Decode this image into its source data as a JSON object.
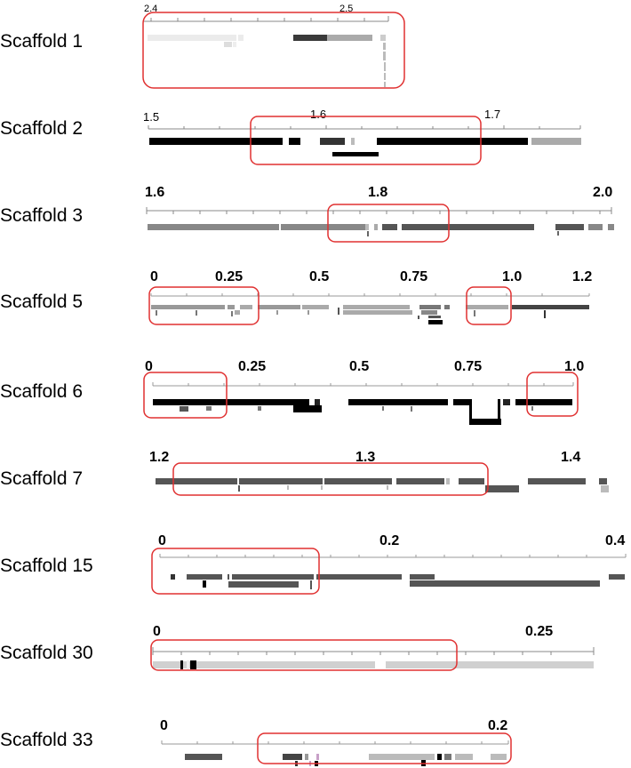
{
  "colors": {
    "highlight": "#e03030",
    "axis": "#777777",
    "black": "#000000",
    "dark": "#444444",
    "mid": "#888888",
    "light": "#bbbbbb",
    "pale": "#d8d8d8"
  },
  "scaffolds": [
    {
      "label": "Scaffold 1",
      "ticks": [
        "2.4",
        "2.5"
      ]
    },
    {
      "label": "Scaffold 2",
      "ticks": [
        "1.5",
        "1.6",
        "1.7"
      ]
    },
    {
      "label": "Scaffold 3",
      "ticks": [
        "1.6",
        "1.8",
        "2.0"
      ]
    },
    {
      "label": "Scaffold 5",
      "ticks": [
        "0",
        "0.25",
        "0.5",
        "0.75",
        "1.0",
        "1.2"
      ]
    },
    {
      "label": "Scaffold 6",
      "ticks": [
        "0",
        "0.25",
        "0.5",
        "0.75",
        "1.0"
      ]
    },
    {
      "label": "Scaffold 7",
      "ticks": [
        "1.2",
        "1.3",
        "1.4"
      ]
    },
    {
      "label": "Scaffold 15",
      "ticks": [
        "0",
        "0.2",
        "0.4"
      ]
    },
    {
      "label": "Scaffold 30",
      "ticks": [
        "0",
        "0.25"
      ]
    },
    {
      "label": "Scaffold 33",
      "ticks": [
        "0",
        "0.2"
      ]
    }
  ]
}
